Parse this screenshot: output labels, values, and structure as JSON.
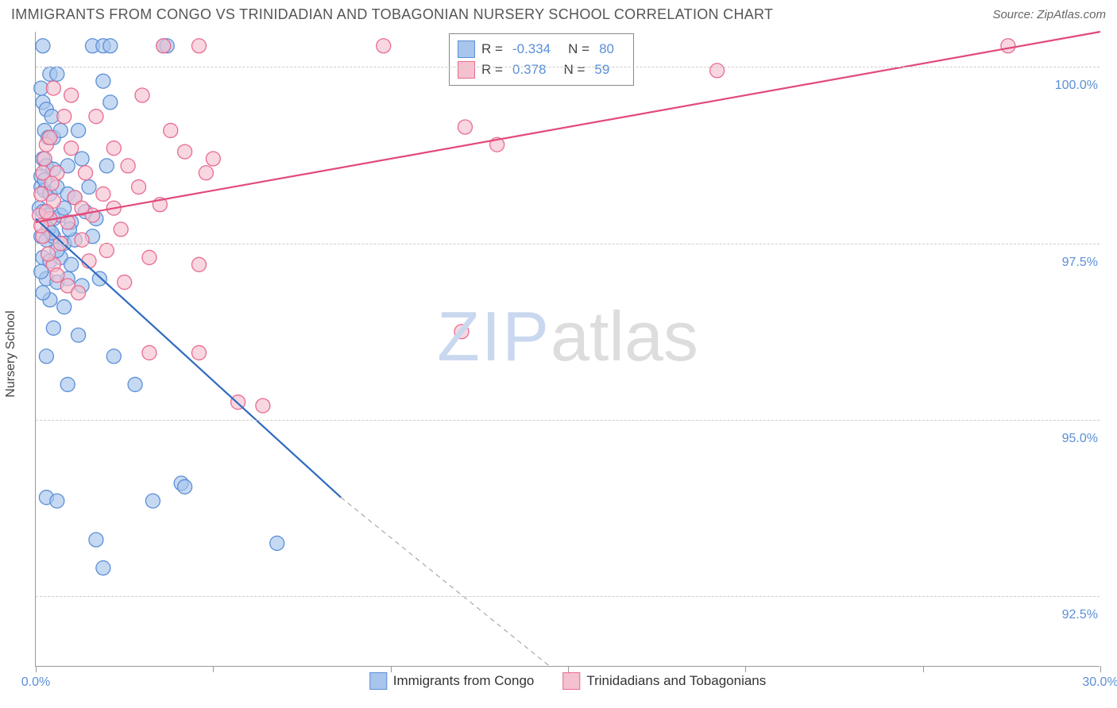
{
  "title": "IMMIGRANTS FROM CONGO VS TRINIDADIAN AND TOBAGONIAN NURSERY SCHOOL CORRELATION CHART",
  "source": "Source: ZipAtlas.com",
  "watermark": {
    "part1": "ZIP",
    "part2": "atlas"
  },
  "ylabel": "Nursery School",
  "chart": {
    "type": "scatter",
    "xlim": [
      0,
      30
    ],
    "ylim": [
      91.5,
      100.5
    ],
    "xtick_positions": [
      0,
      5,
      10,
      15,
      20,
      25,
      30
    ],
    "xtick_labels": [
      "0.0%",
      "",
      "",
      "",
      "",
      "",
      "30.0%"
    ],
    "ytick_positions": [
      92.5,
      95.0,
      97.5,
      100.0
    ],
    "ytick_labels": [
      "92.5%",
      "95.0%",
      "97.5%",
      "100.0%"
    ],
    "grid_color": "#cccccc",
    "series": [
      {
        "name": "Immigrants from Congo",
        "marker_fill": "#a8c5ec",
        "marker_stroke": "#5b8fd6",
        "marker_opacity": 0.65,
        "marker_radius": 9,
        "line_color": "#2e6bc0",
        "line_width": 2.2,
        "R": "-0.334",
        "N": "80",
        "trend": {
          "x1": 0,
          "y1": 97.85,
          "x2": 8.6,
          "y2": 93.9
        },
        "trend_ext": {
          "x1": 8.6,
          "y1": 93.9,
          "x2": 14.5,
          "y2": 91.5
        },
        "points": [
          [
            0.2,
            100.3
          ],
          [
            1.6,
            100.3
          ],
          [
            1.9,
            100.3
          ],
          [
            2.1,
            100.3
          ],
          [
            3.6,
            100.3
          ],
          [
            3.7,
            100.3
          ],
          [
            0.4,
            99.9
          ],
          [
            0.6,
            99.9
          ],
          [
            1.9,
            99.8
          ],
          [
            0.2,
            99.5
          ],
          [
            0.3,
            99.4
          ],
          [
            0.45,
            99.3
          ],
          [
            2.1,
            99.5
          ],
          [
            0.25,
            99.1
          ],
          [
            0.35,
            99.0
          ],
          [
            0.5,
            99.0
          ],
          [
            0.7,
            99.1
          ],
          [
            1.2,
            99.1
          ],
          [
            0.2,
            98.7
          ],
          [
            0.3,
            98.6
          ],
          [
            0.5,
            98.55
          ],
          [
            0.9,
            98.6
          ],
          [
            1.3,
            98.7
          ],
          [
            2.0,
            98.6
          ],
          [
            0.15,
            98.3
          ],
          [
            0.25,
            98.25
          ],
          [
            0.4,
            98.2
          ],
          [
            0.6,
            98.3
          ],
          [
            0.9,
            98.2
          ],
          [
            1.1,
            98.15
          ],
          [
            1.5,
            98.3
          ],
          [
            0.1,
            98.0
          ],
          [
            0.2,
            97.95
          ],
          [
            0.35,
            97.9
          ],
          [
            0.5,
            97.85
          ],
          [
            0.7,
            97.9
          ],
          [
            1.0,
            97.8
          ],
          [
            1.4,
            97.95
          ],
          [
            1.7,
            97.85
          ],
          [
            0.15,
            97.6
          ],
          [
            0.3,
            97.55
          ],
          [
            0.5,
            97.6
          ],
          [
            0.8,
            97.5
          ],
          [
            1.1,
            97.55
          ],
          [
            1.6,
            97.6
          ],
          [
            0.2,
            97.3
          ],
          [
            0.4,
            97.25
          ],
          [
            0.7,
            97.3
          ],
          [
            1.0,
            97.2
          ],
          [
            0.3,
            97.0
          ],
          [
            0.6,
            96.95
          ],
          [
            0.9,
            97.0
          ],
          [
            1.3,
            96.9
          ],
          [
            1.8,
            97.0
          ],
          [
            0.4,
            96.7
          ],
          [
            0.8,
            96.6
          ],
          [
            0.5,
            96.3
          ],
          [
            1.2,
            96.2
          ],
          [
            0.3,
            95.9
          ],
          [
            2.2,
            95.9
          ],
          [
            0.9,
            95.5
          ],
          [
            2.8,
            95.5
          ],
          [
            4.1,
            94.1
          ],
          [
            4.2,
            94.05
          ],
          [
            0.3,
            93.9
          ],
          [
            0.6,
            93.85
          ],
          [
            3.3,
            93.85
          ],
          [
            1.7,
            93.3
          ],
          [
            6.8,
            93.25
          ],
          [
            1.9,
            92.9
          ],
          [
            0.15,
            98.45
          ],
          [
            0.25,
            98.4
          ],
          [
            0.35,
            97.7
          ],
          [
            0.45,
            97.65
          ],
          [
            0.6,
            97.4
          ],
          [
            0.8,
            98.0
          ],
          [
            0.95,
            97.7
          ],
          [
            0.15,
            97.1
          ],
          [
            0.2,
            96.8
          ],
          [
            0.15,
            99.7
          ]
        ]
      },
      {
        "name": "Trinidadians and Tobagonians",
        "marker_fill": "#f5c1cf",
        "marker_stroke": "#e86b91",
        "marker_opacity": 0.65,
        "marker_radius": 9,
        "line_color": "#e24a7a",
        "line_width": 2.2,
        "R": "0.378",
        "N": "59",
        "trend": {
          "x1": 0,
          "y1": 97.8,
          "x2": 30,
          "y2": 100.5
        },
        "points": [
          [
            3.6,
            100.3
          ],
          [
            4.6,
            100.3
          ],
          [
            9.8,
            100.3
          ],
          [
            19.2,
            99.95
          ],
          [
            27.4,
            100.3
          ],
          [
            0.5,
            99.7
          ],
          [
            1.0,
            99.6
          ],
          [
            3.0,
            99.6
          ],
          [
            0.8,
            99.3
          ],
          [
            1.7,
            99.3
          ],
          [
            3.8,
            99.1
          ],
          [
            12.1,
            99.15
          ],
          [
            13.0,
            98.9
          ],
          [
            0.3,
            98.9
          ],
          [
            1.0,
            98.85
          ],
          [
            2.2,
            98.85
          ],
          [
            4.2,
            98.8
          ],
          [
            5.0,
            98.7
          ],
          [
            0.2,
            98.5
          ],
          [
            0.6,
            98.5
          ],
          [
            1.4,
            98.5
          ],
          [
            2.6,
            98.6
          ],
          [
            4.8,
            98.5
          ],
          [
            0.15,
            98.2
          ],
          [
            0.5,
            98.1
          ],
          [
            1.1,
            98.15
          ],
          [
            1.9,
            98.2
          ],
          [
            2.9,
            98.3
          ],
          [
            3.5,
            98.05
          ],
          [
            0.1,
            97.9
          ],
          [
            0.4,
            97.85
          ],
          [
            0.9,
            97.8
          ],
          [
            1.6,
            97.9
          ],
          [
            2.4,
            97.7
          ],
          [
            0.2,
            97.6
          ],
          [
            0.7,
            97.5
          ],
          [
            1.3,
            97.55
          ],
          [
            2.0,
            97.4
          ],
          [
            0.5,
            97.2
          ],
          [
            1.5,
            97.25
          ],
          [
            3.2,
            97.3
          ],
          [
            0.9,
            96.9
          ],
          [
            2.5,
            96.95
          ],
          [
            4.6,
            97.2
          ],
          [
            1.2,
            96.8
          ],
          [
            12.0,
            96.25
          ],
          [
            3.2,
            95.95
          ],
          [
            4.6,
            95.95
          ],
          [
            5.7,
            95.25
          ],
          [
            6.4,
            95.2
          ],
          [
            1.3,
            98.0
          ],
          [
            2.2,
            98.0
          ],
          [
            0.35,
            97.35
          ],
          [
            0.6,
            97.05
          ],
          [
            0.4,
            99.0
          ],
          [
            0.25,
            98.7
          ],
          [
            0.15,
            97.75
          ],
          [
            0.3,
            97.95
          ],
          [
            0.45,
            98.35
          ]
        ]
      }
    ]
  },
  "legend": {
    "bottom": [
      {
        "label": "Immigrants from Congo",
        "fill": "#a8c5ec",
        "stroke": "#5b8fd6"
      },
      {
        "label": "Trinidadians and Tobagonians",
        "fill": "#f5c1cf",
        "stroke": "#e86b91"
      }
    ]
  }
}
